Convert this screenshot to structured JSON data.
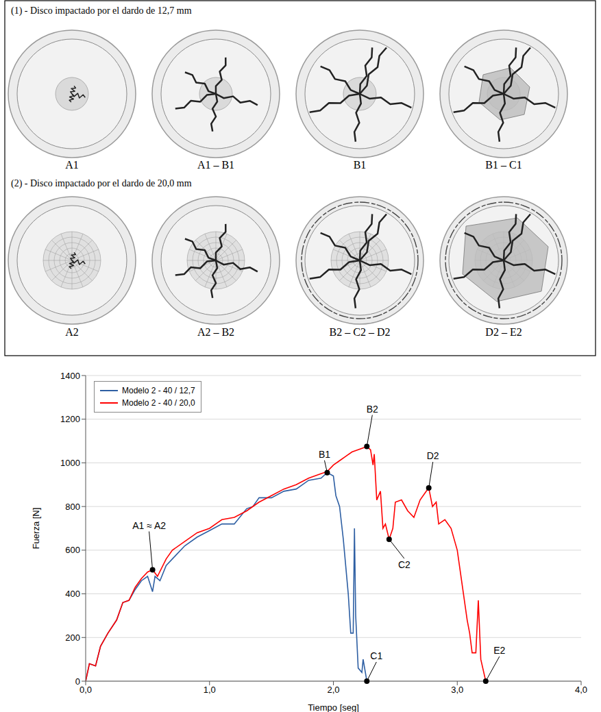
{
  "figure": {
    "rows": [
      {
        "title": "(1) - Disco impactado por el dardo de 12,7 mm",
        "stages": [
          "A1",
          "A1 – B1",
          "B1",
          "B1 – C1"
        ]
      },
      {
        "title": "(2) - Disco impactado por el dardo de 20,0 mm",
        "stages": [
          "A2",
          "A2 – B2",
          "B2 – C2 – D2",
          "D2 – E2"
        ]
      }
    ]
  },
  "chart_data": {
    "type": "line",
    "x_label": "Tiempo [seg]",
    "y_label": "Fuerza [N]",
    "xlim": [
      0,
      4
    ],
    "ylim": [
      0,
      1400
    ],
    "xticks": [
      {
        "value": 0,
        "label": "0,0"
      },
      {
        "value": 1,
        "label": "1,0"
      },
      {
        "value": 2,
        "label": "2,0"
      },
      {
        "value": 3,
        "label": "3,0"
      },
      {
        "value": 4,
        "label": "4,0"
      }
    ],
    "yticks": [
      0,
      200,
      400,
      600,
      800,
      1000,
      1200,
      1400
    ],
    "grid": true,
    "legend": "upper left",
    "series": [
      {
        "name": "Modelo 2 - 40 / 12,7",
        "color": "#2e5fa3",
        "x": [
          0,
          0.03,
          0.08,
          0.12,
          0.18,
          0.25,
          0.3,
          0.35,
          0.4,
          0.45,
          0.5,
          0.54,
          0.56,
          0.6,
          0.65,
          0.7,
          0.8,
          0.9,
          1.0,
          1.1,
          1.2,
          1.3,
          1.35,
          1.4,
          1.5,
          1.6,
          1.7,
          1.8,
          1.9,
          1.95,
          2.0,
          2.02,
          2.05,
          2.08,
          2.12,
          2.14,
          2.16,
          2.17,
          2.18,
          2.2,
          2.23,
          2.24,
          2.27
        ],
        "values": [
          0,
          80,
          70,
          160,
          220,
          280,
          360,
          370,
          420,
          460,
          480,
          410,
          480,
          460,
          530,
          560,
          620,
          660,
          690,
          720,
          720,
          790,
          800,
          840,
          840,
          870,
          880,
          920,
          930,
          955,
          940,
          850,
          800,
          650,
          400,
          220,
          220,
          700,
          300,
          60,
          40,
          100,
          0
        ]
      },
      {
        "name": "Modelo 2 - 40 / 20,0",
        "color": "#ff0000",
        "x": [
          0,
          0.03,
          0.08,
          0.12,
          0.18,
          0.25,
          0.3,
          0.35,
          0.4,
          0.45,
          0.5,
          0.54,
          0.58,
          0.65,
          0.7,
          0.8,
          0.9,
          1.0,
          1.1,
          1.2,
          1.3,
          1.4,
          1.5,
          1.6,
          1.7,
          1.8,
          1.9,
          1.95,
          2.0,
          2.05,
          2.1,
          2.15,
          2.2,
          2.25,
          2.27,
          2.3,
          2.32,
          2.33,
          2.35,
          2.38,
          2.4,
          2.42,
          2.45,
          2.48,
          2.5,
          2.55,
          2.6,
          2.65,
          2.7,
          2.75,
          2.77,
          2.8,
          2.83,
          2.85,
          2.9,
          2.95,
          3.0,
          3.05,
          3.08,
          3.1,
          3.12,
          3.15,
          3.17,
          3.19,
          3.23
        ],
        "values": [
          0,
          80,
          70,
          160,
          220,
          280,
          360,
          370,
          430,
          470,
          500,
          510,
          480,
          560,
          600,
          640,
          680,
          700,
          740,
          750,
          780,
          820,
          850,
          880,
          900,
          930,
          950,
          960,
          990,
          1010,
          1030,
          1050,
          1060,
          1070,
          1075,
          1060,
          990,
          1040,
          830,
          870,
          700,
          720,
          650,
          700,
          820,
          830,
          780,
          750,
          830,
          870,
          885,
          800,
          820,
          720,
          740,
          700,
          600,
          400,
          280,
          220,
          130,
          130,
          370,
          100,
          0
        ]
      }
    ],
    "annotations": [
      {
        "label": "A1 ≈ A2",
        "x": 0.54,
        "y": 510
      },
      {
        "label": "B1",
        "x": 1.95,
        "y": 955
      },
      {
        "label": "B2",
        "x": 2.27,
        "y": 1075
      },
      {
        "label": "C1",
        "x": 2.27,
        "y": 0
      },
      {
        "label": "C2",
        "x": 2.45,
        "y": 650
      },
      {
        "label": "D2",
        "x": 2.77,
        "y": 885
      },
      {
        "label": "E2",
        "x": 3.23,
        "y": 0
      }
    ]
  }
}
